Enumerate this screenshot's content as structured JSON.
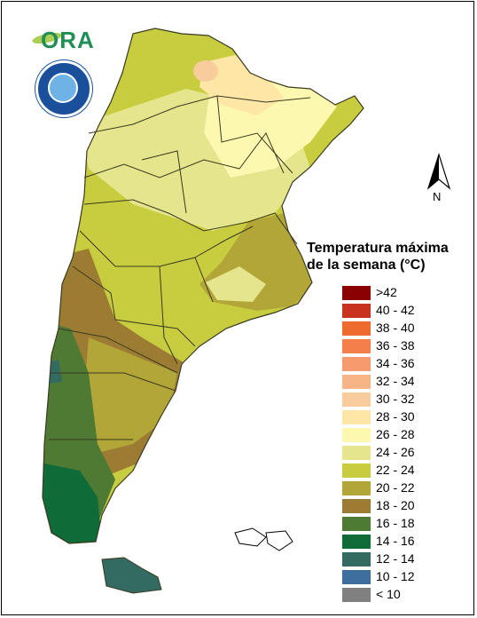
{
  "legend": {
    "title_line1": "Temperatura máxima",
    "title_line2": "de la semana (°C)",
    "items": [
      {
        "label": ">42",
        "color": "#8b0000"
      },
      {
        "label": "40 - 42",
        "color": "#c8321e"
      },
      {
        "label": "38 - 40",
        "color": "#ef6a2e"
      },
      {
        "label": "36 - 38",
        "color": "#f47f4a"
      },
      {
        "label": "34 - 36",
        "color": "#f59b6e"
      },
      {
        "label": "32 - 34",
        "color": "#f7b486"
      },
      {
        "label": "30 - 32",
        "color": "#f9cc9c"
      },
      {
        "label": "28 - 30",
        "color": "#fde6a6"
      },
      {
        "label": "26 - 28",
        "color": "#fdf8b0"
      },
      {
        "label": "24 - 26",
        "color": "#e4e58c"
      },
      {
        "label": "22 - 24",
        "color": "#c8cd40"
      },
      {
        "label": "20 - 22",
        "color": "#b3a638"
      },
      {
        "label": "18 - 20",
        "color": "#9c7c33"
      },
      {
        "label": "16 - 18",
        "color": "#4e7a34"
      },
      {
        "label": "14 - 16",
        "color": "#0f6b38"
      },
      {
        "label": "12 - 14",
        "color": "#336b63"
      },
      {
        "label": "10 - 12",
        "color": "#3e6f9c"
      },
      {
        "label": "< 10",
        "color": "#808080"
      }
    ]
  },
  "north_arrow": {
    "label": "N",
    "icon": "north-arrow-icon"
  },
  "logos": {
    "ora": "ORA",
    "smn": "smn-seal-icon"
  },
  "colors": {
    "border": "#000000",
    "province_line": "#3a3a20"
  }
}
